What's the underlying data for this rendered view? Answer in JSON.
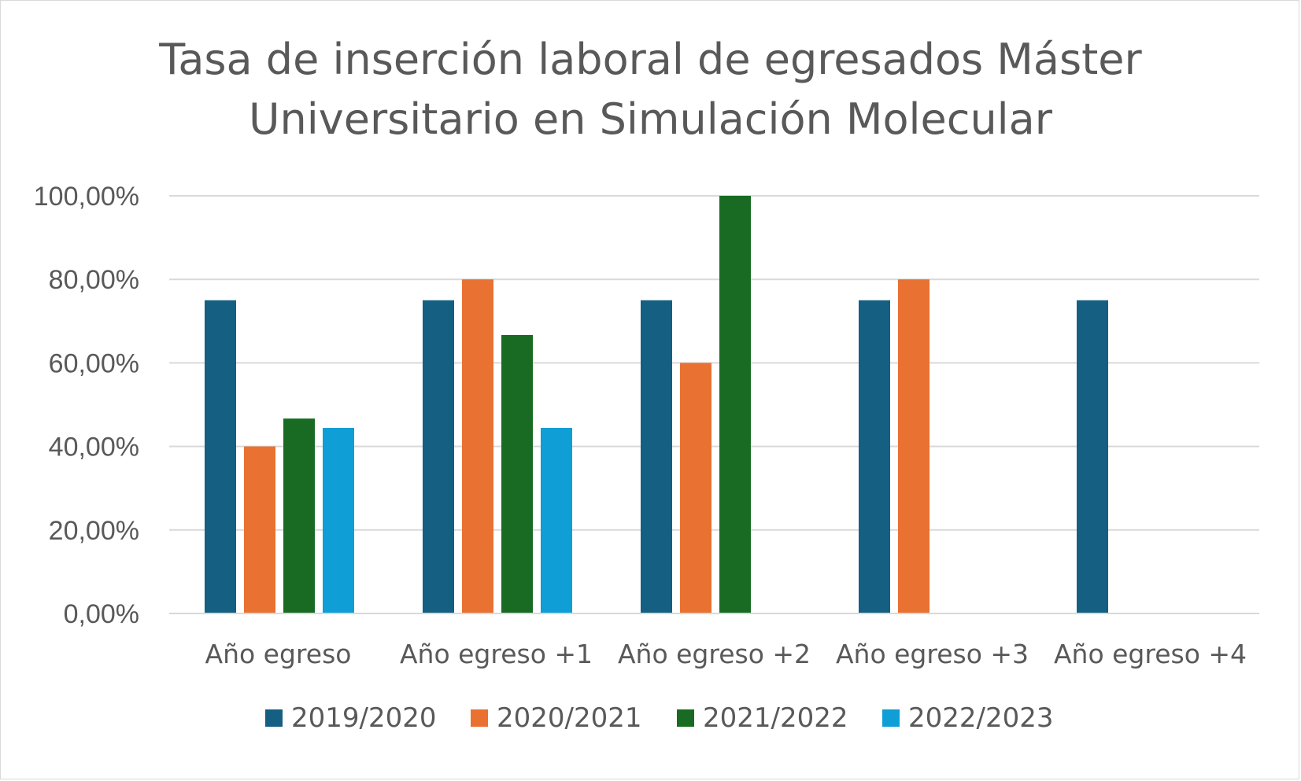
{
  "chart_data": {
    "type": "bar",
    "title_lines": [
      "Tasa de inserción laboral de egresados Máster",
      "Universitario en Simulación Molecular"
    ],
    "xlabel": "",
    "ylabel": "",
    "categories": [
      "Año egreso",
      "Año egreso +1",
      "Año egreso +2",
      "Año egreso +3",
      "Año egreso +4"
    ],
    "ylim": [
      0,
      100
    ],
    "yticks": [
      0,
      20,
      40,
      60,
      80,
      100
    ],
    "ytick_labels": [
      "0,00%",
      "20,00%",
      "40,00%",
      "60,00%",
      "80,00%",
      "100,00%"
    ],
    "grid": true,
    "legend_position": "bottom",
    "series": [
      {
        "name": "2019/2020",
        "color": "#156082",
        "values": [
          75,
          75,
          75,
          75,
          75
        ]
      },
      {
        "name": "2020/2021",
        "color": "#E97132",
        "values": [
          40,
          80,
          60,
          80,
          null
        ]
      },
      {
        "name": "2021/2022",
        "color": "#196B24",
        "values": [
          46.67,
          66.67,
          100,
          null,
          null
        ]
      },
      {
        "name": "2022/2023",
        "color": "#0F9ED5",
        "values": [
          44.44,
          44.44,
          null,
          null,
          null
        ]
      }
    ]
  }
}
